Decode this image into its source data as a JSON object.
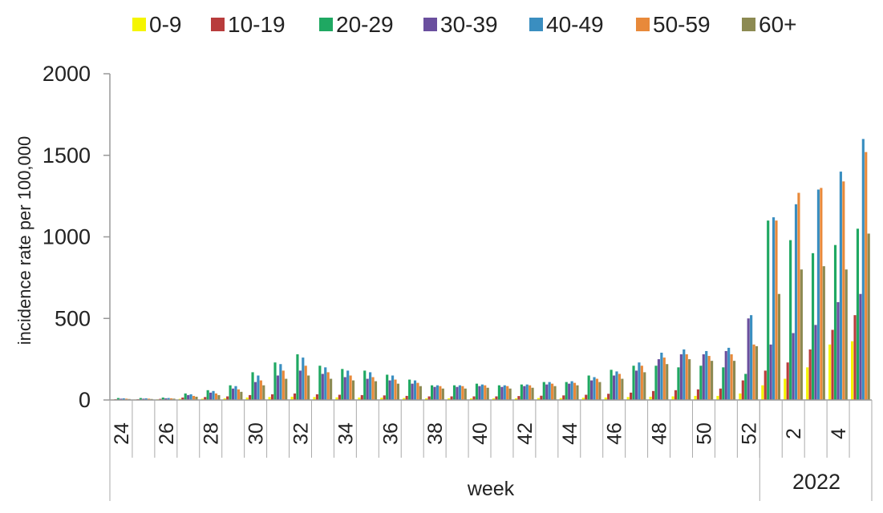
{
  "chart_data": {
    "type": "bar",
    "title": "",
    "xlabel": "week",
    "ylabel": "incidence rate per 100,000",
    "ylim": [
      0,
      2000
    ],
    "yticks": [
      0,
      500,
      1000,
      1500,
      2000
    ],
    "year_label": "2022",
    "legend_position": "top",
    "categories": [
      "24",
      "25",
      "26",
      "27",
      "28",
      "29",
      "30",
      "31",
      "32",
      "33",
      "34",
      "35",
      "36",
      "37",
      "38",
      "39",
      "40",
      "41",
      "42",
      "43",
      "44",
      "45",
      "46",
      "47",
      "48",
      "49",
      "50",
      "51",
      "52",
      "1",
      "2",
      "3",
      "4",
      "5"
    ],
    "category_labels": [
      "24",
      "",
      "26",
      "",
      "28",
      "",
      "30",
      "",
      "32",
      "",
      "34",
      "",
      "36",
      "",
      "38",
      "",
      "40",
      "",
      "42",
      "",
      "44",
      "",
      "46",
      "",
      "48",
      "",
      "50",
      "",
      "52",
      "",
      "2",
      "",
      "4",
      ""
    ],
    "series": [
      {
        "name": "0-9",
        "color": "#f5f500",
        "values": [
          3,
          3,
          4,
          7,
          8,
          10,
          15,
          18,
          20,
          18,
          16,
          15,
          14,
          12,
          10,
          10,
          10,
          10,
          10,
          12,
          12,
          14,
          15,
          18,
          20,
          22,
          25,
          25,
          40,
          90,
          130,
          200,
          340,
          360
        ]
      },
      {
        "name": "10-19",
        "color": "#b83c3c",
        "values": [
          5,
          5,
          7,
          15,
          18,
          22,
          30,
          35,
          40,
          35,
          32,
          30,
          28,
          25,
          22,
          22,
          22,
          22,
          24,
          26,
          28,
          32,
          38,
          45,
          55,
          60,
          65,
          70,
          120,
          180,
          230,
          310,
          430,
          520
        ]
      },
      {
        "name": "20-29",
        "color": "#1fa862",
        "values": [
          12,
          12,
          15,
          40,
          60,
          90,
          170,
          230,
          280,
          210,
          190,
          180,
          155,
          125,
          90,
          90,
          100,
          90,
          95,
          110,
          110,
          150,
          185,
          210,
          210,
          200,
          210,
          200,
          160,
          1100,
          980,
          900,
          950,
          1050
        ]
      },
      {
        "name": "30-39",
        "color": "#6a4f9e",
        "values": [
          8,
          8,
          10,
          30,
          45,
          70,
          110,
          150,
          180,
          160,
          140,
          130,
          120,
          100,
          80,
          80,
          85,
          80,
          85,
          95,
          100,
          120,
          150,
          180,
          250,
          280,
          280,
          300,
          500,
          340,
          410,
          460,
          600,
          650
        ]
      },
      {
        "name": "40-49",
        "color": "#3a8ec0",
        "values": [
          10,
          10,
          12,
          35,
          55,
          85,
          150,
          220,
          260,
          200,
          180,
          170,
          150,
          120,
          90,
          90,
          95,
          90,
          95,
          110,
          115,
          140,
          175,
          230,
          290,
          310,
          300,
          320,
          520,
          1120,
          1200,
          1290,
          1400,
          1600
        ]
      },
      {
        "name": "50-59",
        "color": "#e8893a",
        "values": [
          8,
          8,
          10,
          25,
          40,
          65,
          120,
          180,
          210,
          170,
          150,
          140,
          125,
          105,
          85,
          85,
          90,
          85,
          90,
          100,
          105,
          130,
          160,
          210,
          260,
          280,
          270,
          280,
          340,
          1100,
          1270,
          1300,
          1340,
          1520
        ]
      },
      {
        "name": "60+",
        "color": "#8c8a52",
        "values": [
          6,
          6,
          8,
          20,
          30,
          50,
          90,
          130,
          150,
          130,
          120,
          115,
          100,
          85,
          70,
          70,
          75,
          70,
          75,
          85,
          90,
          110,
          130,
          170,
          220,
          250,
          240,
          240,
          330,
          650,
          800,
          820,
          800,
          1020
        ]
      }
    ]
  }
}
